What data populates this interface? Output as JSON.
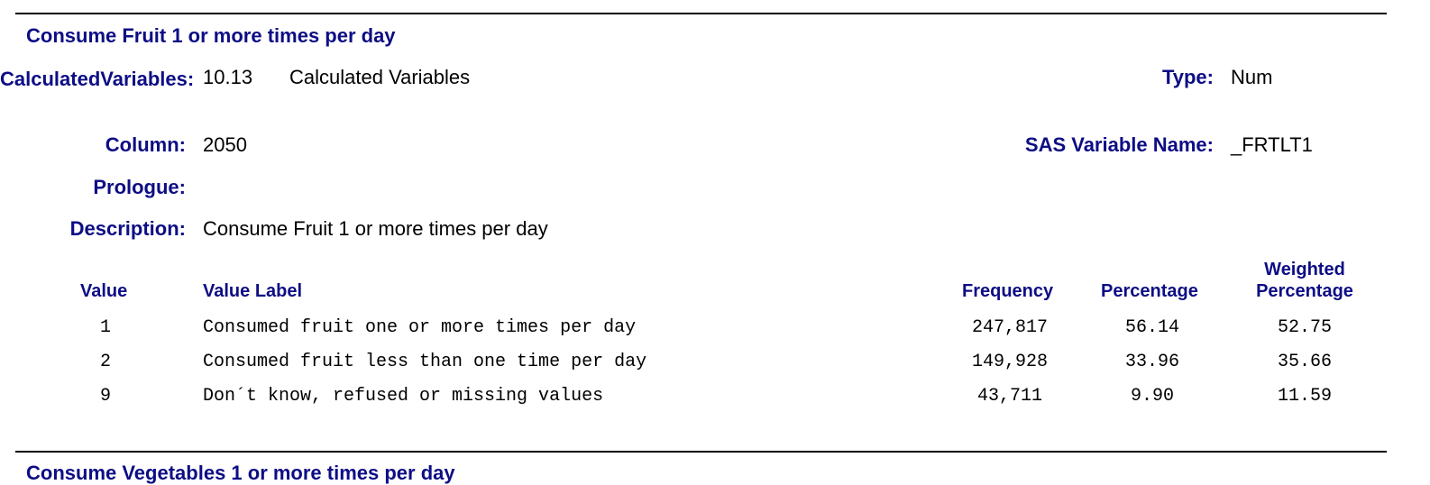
{
  "section": {
    "title": "Consume Fruit 1 or more times per day"
  },
  "fields": {
    "calculated_variables_label": "CalculatedVariables:",
    "calculated_variables_number": "10.13",
    "calculated_variables_name": "Calculated Variables",
    "column_label": "Column:",
    "column_value": "2050",
    "prologue_label": "Prologue:",
    "description_label": "Description:",
    "description_value": "Consume Fruit 1 or more times per day",
    "type_label": "Type:",
    "type_value": "Num",
    "sas_variable_label": "SAS Variable Name:",
    "sas_variable_value": "_FRTLT1"
  },
  "table": {
    "headers": {
      "value": "Value",
      "value_label": "Value Label",
      "frequency": "Frequency",
      "percentage": "Percentage",
      "weighted_percentage": "Weighted Percentage"
    },
    "rows": [
      {
        "value": "1",
        "label": "Consumed fruit one or more times per day",
        "frequency": "247,817",
        "percentage": "56.14",
        "weighted_percentage": "52.75"
      },
      {
        "value": "2",
        "label": "Consumed fruit less than one time per day",
        "frequency": "149,928",
        "percentage": "33.96",
        "weighted_percentage": "35.66"
      },
      {
        "value": "9",
        "label": "Don´t know, refused or missing values",
        "frequency": "43,711",
        "percentage": "9.90",
        "weighted_percentage": "11.59"
      }
    ]
  },
  "next_section": {
    "title_partial": "Consume Vegetables 1 or more times per day"
  }
}
